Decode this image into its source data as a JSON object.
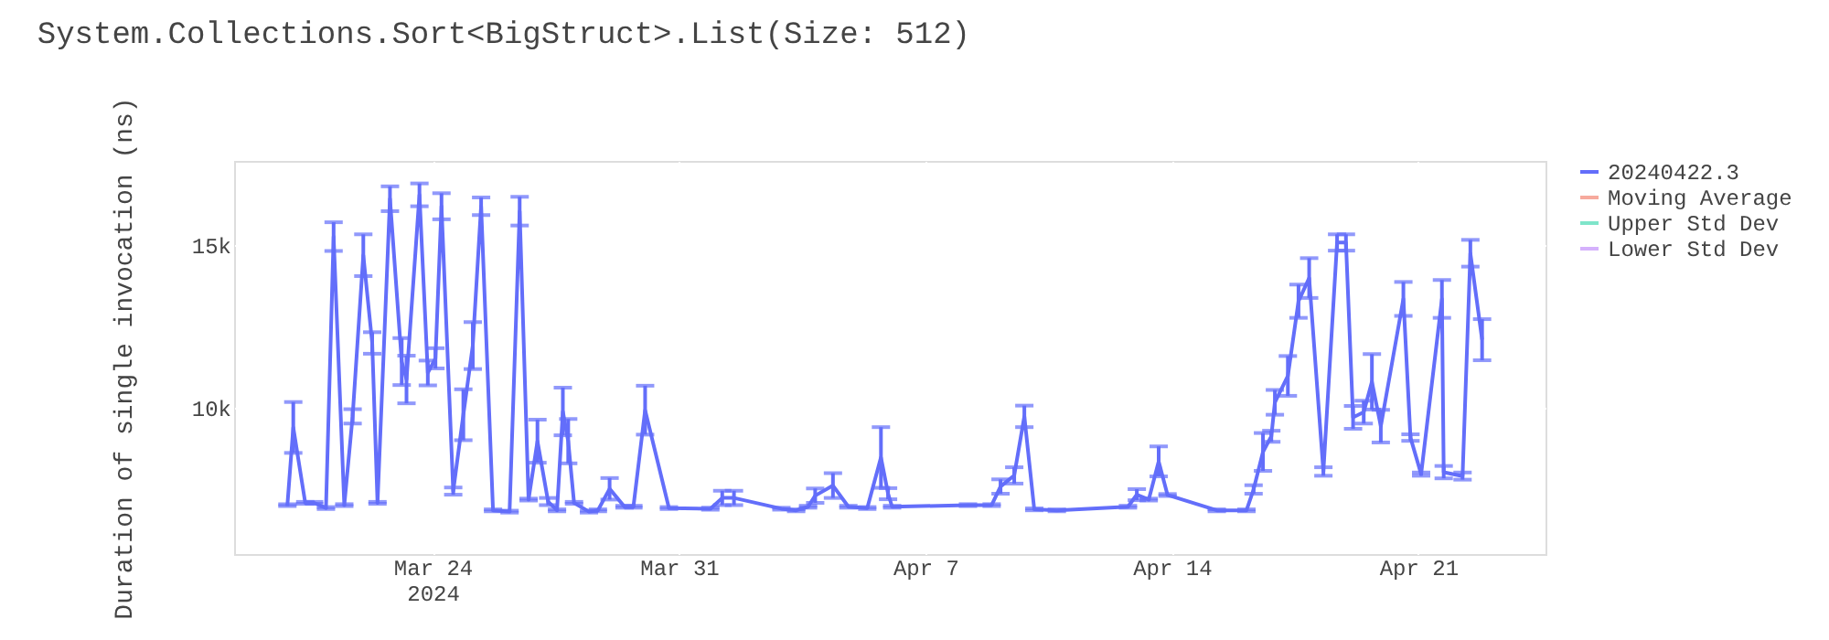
{
  "chart_data": {
    "type": "line",
    "title": "System.Collections.Sort<BigStruct>.List(Size: 512)",
    "ylabel": "Duration of single invocation (ns)",
    "x": [
      "2024-03-19T21:00",
      "2024-03-20T01:00",
      "2024-03-20T09:10",
      "2024-03-20T15:12",
      "2024-03-20T23:18",
      "2024-03-21T04:30",
      "2024-03-21T11:47",
      "2024-03-21T17:28",
      "2024-03-22T00:45",
      "2024-03-22T06:49",
      "2024-03-22T10:26",
      "2024-03-22T18:56",
      "2024-03-23T02:56",
      "2024-03-23T06:12",
      "2024-03-23T15:02",
      "2024-03-23T20:44",
      "2024-03-24T01:56",
      "2024-03-24T06:03",
      "2024-03-24T14:03",
      "2024-03-24T20:57",
      "2024-03-25T03:23",
      "2024-03-25T09:04",
      "2024-03-25T17:11",
      "2024-03-26T04:28",
      "2024-03-26T11:21",
      "2024-03-26T17:25",
      "2024-03-26T23:29",
      "2024-03-27T06:45",
      "2024-03-27T12:49",
      "2024-03-27T16:48",
      "2024-03-27T20:27",
      "2024-03-28T00:26",
      "2024-03-28T10:36",
      "2024-03-28T16:41",
      "2024-03-29T00:40",
      "2024-03-29T10:51",
      "2024-03-29T16:54",
      "2024-03-30T00:53",
      "2024-03-30T17:08",
      "2024-03-31T21:22",
      "2024-04-01T05:28",
      "2024-04-01T13:28",
      "2024-04-02T21:49",
      "2024-04-03T07:52",
      "2024-04-03T15:59",
      "2024-04-03T20:50",
      "2024-04-04T08:57",
      "2024-04-04T19:29",
      "2024-04-05T08:20",
      "2024-04-05T17:40",
      "2024-04-05T22:31",
      "2024-04-06T01:18",
      "2024-04-08T05:01",
      "2024-04-08T21:09",
      "2024-04-09T03:12",
      "2024-04-09T12:32",
      "2024-04-09T19:26",
      "2024-04-10T02:12",
      "2024-04-10T17:36",
      "2024-04-12T18:04",
      "2024-04-13T00:07",
      "2024-04-13T08:14",
      "2024-04-13T15:01",
      "2024-04-13T21:04",
      "2024-04-15T06:39",
      "2024-04-16T02:53",
      "2024-04-16T07:44",
      "2024-04-16T14:08",
      "2024-04-16T19:49",
      "2024-04-16T22:15",
      "2024-04-17T07:06",
      "2024-04-17T14:21",
      "2024-04-17T21:37",
      "2024-04-18T07:19",
      "2024-04-18T16:39",
      "2024-04-18T22:42",
      "2024-04-19T03:33",
      "2024-04-19T10:49",
      "2024-04-19T16:24",
      "2024-04-19T22:28",
      "2024-04-20T13:51",
      "2024-04-20T18:42",
      "2024-04-21T01:57",
      "2024-04-21T16:08",
      "2024-04-21T17:21",
      "2024-04-22T06:12",
      "2024-04-22T11:31",
      "2024-04-22T19:31"
    ],
    "series": [
      {
        "name": "20240422.3",
        "color": "#636efa",
        "values": [
          7020,
          9400,
          7090,
          7090,
          6930,
          15250,
          7020,
          9740,
          14680,
          11990,
          7090,
          16410,
          11420,
          10870,
          16530,
          11070,
          11520,
          16180,
          7450,
          9790,
          11910,
          16180,
          6860,
          6820,
          16030,
          7190,
          8980,
          7130,
          6860,
          9890,
          8980,
          7090,
          6820,
          6860,
          7520,
          6970,
          6970,
          9930,
          6930,
          6910,
          7240,
          7240,
          6910,
          6860,
          6970,
          7310,
          7620,
          6970,
          6930,
          8480,
          7370,
          6970,
          7020,
          7020,
          7590,
          7930,
          9740,
          6890,
          6860,
          6970,
          7340,
          7190,
          8360,
          7330,
          6860,
          6860,
          7500,
          8650,
          9130,
          10170,
          10980,
          13270,
          13980,
          8050,
          15070,
          15070,
          9710,
          9870,
          10800,
          9440,
          13340,
          9090,
          7970,
          13340,
          8030,
          7910,
          14740,
          12090
        ],
        "errors": [
          30,
          780,
          30,
          30,
          30,
          440,
          30,
          220,
          640,
          330,
          30,
          380,
          720,
          730,
          350,
          380,
          310,
          400,
          110,
          780,
          720,
          270,
          30,
          30,
          440,
          30,
          660,
          110,
          30,
          730,
          680,
          30,
          30,
          30,
          330,
          30,
          30,
          750,
          30,
          30,
          220,
          220,
          30,
          30,
          30,
          220,
          380,
          30,
          30,
          930,
          170,
          30,
          30,
          30,
          220,
          250,
          330,
          30,
          30,
          30,
          170,
          30,
          460,
          30,
          30,
          30,
          130,
          580,
          170,
          380,
          610,
          510,
          610,
          130,
          250,
          250,
          350,
          350,
          850,
          500,
          520,
          100,
          50,
          580,
          190,
          110,
          410,
          630
        ]
      },
      {
        "name": "Moving Average",
        "color": "#f7aa9d",
        "values": [
          null,
          null,
          null,
          null,
          null,
          null,
          null,
          null,
          null,
          null,
          null,
          null,
          null,
          null,
          null,
          null,
          null,
          null,
          null,
          null,
          null,
          null,
          null,
          null,
          null,
          null,
          null,
          null,
          null,
          null,
          null,
          null,
          null,
          null,
          null,
          null,
          null,
          null,
          null,
          null,
          null,
          null,
          null,
          null,
          null,
          null,
          null,
          null,
          null,
          null,
          null,
          null,
          null,
          null,
          null,
          null,
          null,
          null,
          null,
          null,
          null,
          null,
          null,
          null,
          null,
          null,
          null,
          null,
          null,
          null,
          null,
          null,
          null,
          null,
          null,
          null,
          null,
          null,
          null,
          null,
          null,
          null,
          null,
          null,
          null,
          null,
          null,
          null
        ]
      },
      {
        "name": "Upper Std Dev",
        "color": "#7fe5ca",
        "values": [
          null,
          null,
          null,
          null,
          null,
          null,
          null,
          null,
          null,
          null,
          null,
          null,
          null,
          null,
          null,
          null,
          null,
          null,
          null,
          null,
          null,
          null,
          null,
          null,
          null,
          null,
          null,
          null,
          null,
          null,
          null,
          null,
          null,
          null,
          null,
          null,
          null,
          null,
          null,
          null,
          null,
          null,
          null,
          null,
          null,
          null,
          null,
          null,
          null,
          null,
          null,
          null,
          null,
          null,
          null,
          null,
          null,
          null,
          null,
          null,
          null,
          null,
          null,
          null,
          null,
          null,
          null,
          null,
          null,
          null,
          null,
          null,
          null,
          null,
          null,
          null,
          null,
          null,
          null,
          null,
          null,
          null,
          null,
          null,
          null,
          null,
          null,
          null
        ]
      },
      {
        "name": "Lower Std Dev",
        "color": "#d5b1fc",
        "values": [
          null,
          null,
          null,
          null,
          null,
          null,
          null,
          null,
          null,
          null,
          null,
          null,
          null,
          null,
          null,
          null,
          null,
          null,
          null,
          null,
          null,
          null,
          null,
          null,
          null,
          null,
          null,
          null,
          null,
          null,
          null,
          null,
          null,
          null,
          null,
          null,
          null,
          null,
          null,
          null,
          null,
          null,
          null,
          null,
          null,
          null,
          null,
          null,
          null,
          null,
          null,
          null,
          null,
          null,
          null,
          null,
          null,
          null,
          null,
          null,
          null,
          null,
          null,
          null,
          null,
          null,
          null,
          null,
          null,
          null,
          null,
          null,
          null,
          null,
          null,
          null,
          null,
          null,
          null,
          null,
          null,
          null,
          null,
          null,
          null,
          null,
          null,
          null
        ]
      }
    ],
    "xlim": [
      "2024-03-18T08:40",
      "2024-04-24T14:45"
    ],
    "xticks": [
      {
        "value": "2024-03-24",
        "label": "Mar 24\n2024"
      },
      {
        "value": "2024-03-31",
        "label": "Mar 31"
      },
      {
        "value": "2024-04-07",
        "label": "Apr 7"
      },
      {
        "value": "2024-04-14",
        "label": "Apr 14"
      },
      {
        "value": "2024-04-21",
        "label": "Apr 21"
      }
    ],
    "ylim": [
      5520,
      17570
    ],
    "yticks": [
      {
        "value": 10000,
        "label": "10k"
      },
      {
        "value": 15000,
        "label": "15k"
      }
    ],
    "grid": true,
    "legend": "top right",
    "marker": "none",
    "line_style": "solid"
  }
}
